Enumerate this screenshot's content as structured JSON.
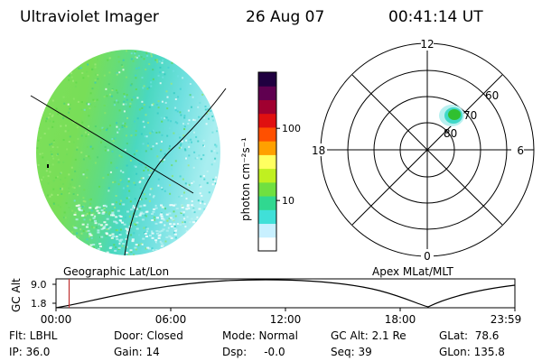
{
  "header": {
    "instrument": "Ultraviolet Imager",
    "date": "26 Aug 07",
    "time": "00:41:14 UT"
  },
  "colorbar": {
    "unit_label": "photon cm⁻²s⁻¹",
    "ticks": [
      {
        "label": "100",
        "value": 100
      },
      {
        "label": "10",
        "value": 10
      }
    ],
    "colors": [
      "#ffffff",
      "#c8f0ff",
      "#40e0d8",
      "#30d890",
      "#70e040",
      "#c0f020",
      "#ffff60",
      "#ffa000",
      "#ff5000",
      "#e01010",
      "#a00030",
      "#600050",
      "#200040"
    ]
  },
  "polar_plot": {
    "mlt_labels": {
      "top": "12",
      "right": "6",
      "bottom": "0",
      "left": "18"
    },
    "lat_labels": [
      "60",
      "70",
      "80"
    ]
  },
  "timeline": {
    "left_panel_label": "Geographic Lat/Lon",
    "right_panel_label": "Apex MLat/MLT",
    "y_axis_label": "GC Alt",
    "y_ticks": [
      "9.0",
      "1.8"
    ],
    "x_ticks": [
      "00:00",
      "06:00",
      "12:00",
      "18:00",
      "23:59"
    ],
    "current_time_fraction": 0.0286
  },
  "footer": {
    "flt": "Flt: LBHL",
    "ip": "IP: 36.0",
    "door": "Door: Closed",
    "gain": "Gain: 14",
    "mode": "Mode: Normal",
    "dsp": "Dsp:     -0.0",
    "gcalt": "GC Alt: 2.1 Re",
    "seq": "Seq: 39",
    "glat": "GLat:  78.6",
    "glon": "GLon: 135.8"
  }
}
